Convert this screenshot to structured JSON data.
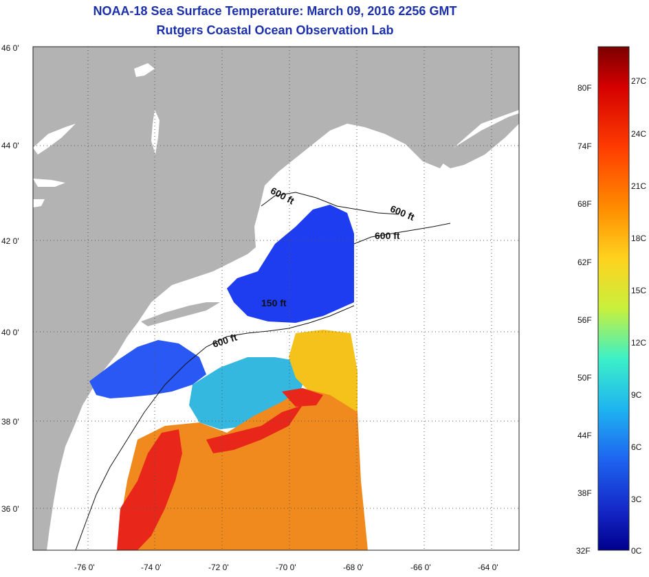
{
  "title": {
    "line1": "NOAA-18 Sea Surface Temperature:  March 09, 2016 2256 GMT",
    "line2": "Rutgers Coastal Ocean Observation Lab"
  },
  "map": {
    "lat_labels": [
      "46 0'",
      "44 0'",
      "42 0'",
      "40 0'",
      "38 0'",
      "36 0'"
    ],
    "lon_labels": [
      "-76 0'",
      "-74 0'",
      "-72 0'",
      "-70 0'",
      "-68 0'",
      "-66 0'",
      "-64 0'"
    ],
    "contour_labels": [
      "600 ft",
      "600 ft",
      "600 ft",
      "150 ft",
      "600 ft"
    ],
    "colors": {
      "land": "#b3b3b3",
      "no_data": "#ffffff",
      "cold": "#1e3cf0",
      "cool": "#23c8d8",
      "mild": "#f5c21c",
      "warm": "#f08a1e",
      "hot": "#e8271a"
    }
  },
  "colorbar": {
    "fahrenheit_labels": [
      "80F",
      "74F",
      "68F",
      "62F",
      "56F",
      "50F",
      "44F",
      "38F",
      "32F"
    ],
    "celsius_labels": [
      "27C",
      "24C",
      "21C",
      "18C",
      "15C",
      "12C",
      "9C",
      "6C",
      "3C",
      "0C"
    ],
    "gradient": [
      "#7a0000",
      "#d40000",
      "#ff3c00",
      "#ff8c00",
      "#ffd21e",
      "#c8f03c",
      "#3cf0c8",
      "#1eb4f0",
      "#1e64f0",
      "#1428c8",
      "#00008c"
    ]
  }
}
